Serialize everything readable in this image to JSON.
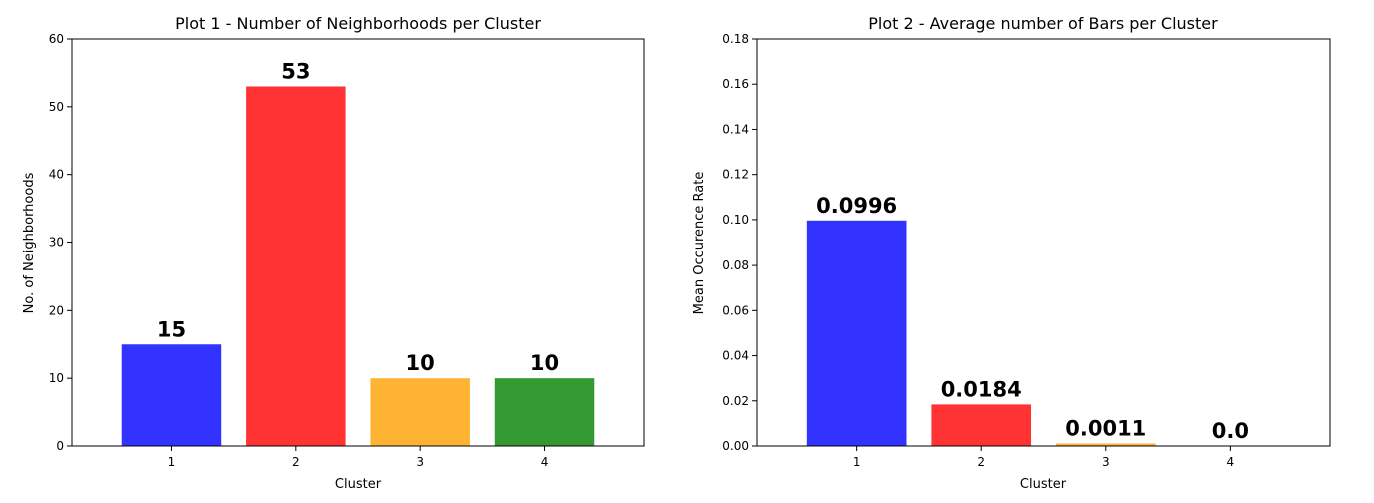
{
  "chart_data": [
    {
      "type": "bar",
      "title": "Plot 1 - Number of Neighborhoods per Cluster",
      "xlabel": "Cluster",
      "ylabel": "No. of Neighborhoods",
      "categories": [
        "1",
        "2",
        "3",
        "4"
      ],
      "values": [
        15,
        53,
        10,
        10
      ],
      "data_labels": [
        "15",
        "53",
        "10",
        "10"
      ],
      "colors": [
        "#3333ff",
        "#ff3333",
        "#ffb333",
        "#339933"
      ],
      "ylim": [
        0,
        60
      ],
      "yticks": [
        0,
        10,
        20,
        30,
        40,
        50,
        60
      ],
      "ytick_labels": [
        "0",
        "10",
        "20",
        "30",
        "40",
        "50",
        "60"
      ],
      "grid": false,
      "legend": "none"
    },
    {
      "type": "bar",
      "title": "Plot 2 - Average number of Bars per Cluster",
      "xlabel": "Cluster",
      "ylabel": "Mean Occurence Rate",
      "categories": [
        "1",
        "2",
        "3",
        "4"
      ],
      "values": [
        0.0996,
        0.0184,
        0.0011,
        0.0
      ],
      "data_labels": [
        "0.0996",
        "0.0184",
        "0.0011",
        "0.0"
      ],
      "colors": [
        "#3333ff",
        "#ff3333",
        "#ffb333",
        "#339933"
      ],
      "ylim": [
        0,
        0.18
      ],
      "yticks": [
        0,
        0.02,
        0.04,
        0.06,
        0.08,
        0.1,
        0.12,
        0.14,
        0.16,
        0.18
      ],
      "ytick_labels": [
        "0.00",
        "0.02",
        "0.04",
        "0.06",
        "0.08",
        "0.10",
        "0.12",
        "0.14",
        "0.16",
        "0.18"
      ],
      "grid": false,
      "legend": "none"
    }
  ]
}
